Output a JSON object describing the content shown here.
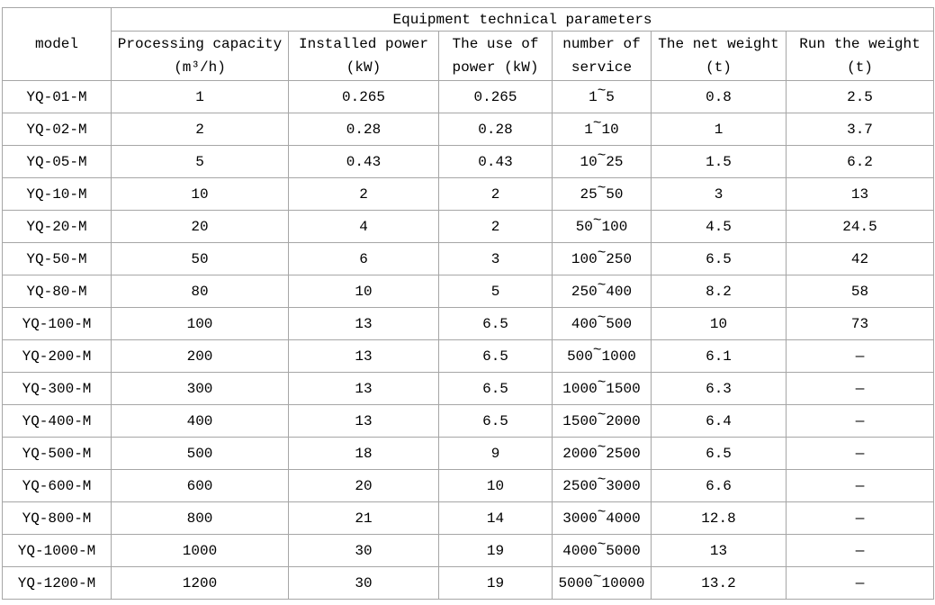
{
  "colors": {
    "border": "#a6a6a6",
    "text": "#000000",
    "background": "#ffffff"
  },
  "table": {
    "title": "Equipment technical parameters",
    "model_header": "model",
    "columns": [
      {
        "line1": "Processing capacity",
        "line2": "(m³/h)"
      },
      {
        "line1": "Installed power",
        "line2": "(kW)"
      },
      {
        "line1": "The use of",
        "line2": "power (kW)"
      },
      {
        "line1": "number of",
        "line2": "service"
      },
      {
        "line1": "The net weight",
        "line2": "(t)"
      },
      {
        "line1": "Run the weight",
        "line2": "(t)"
      }
    ],
    "rows": [
      [
        "YQ-01-M",
        "1",
        "0.265",
        "0.265",
        "1~5",
        "0.8",
        "2.5"
      ],
      [
        "YQ-02-M",
        "2",
        "0.28",
        "0.28",
        "1~10",
        "1",
        "3.7"
      ],
      [
        "YQ-05-M",
        "5",
        "0.43",
        "0.43",
        "10~25",
        "1.5",
        "6.2"
      ],
      [
        "YQ-10-M",
        "10",
        "2",
        "2",
        "25~50",
        "3",
        "13"
      ],
      [
        "YQ-20-M",
        "20",
        "4",
        "2",
        "50~100",
        "4.5",
        "24.5"
      ],
      [
        "YQ-50-M",
        "50",
        "6",
        "3",
        "100~250",
        "6.5",
        "42"
      ],
      [
        "YQ-80-M",
        "80",
        "10",
        "5",
        "250~400",
        "8.2",
        "58"
      ],
      [
        "YQ-100-M",
        "100",
        "13",
        "6.5",
        "400~500",
        "10",
        "73"
      ],
      [
        "YQ-200-M",
        "200",
        "13",
        "6.5",
        "500~1000",
        "6.1",
        "—"
      ],
      [
        "YQ-300-M",
        "300",
        "13",
        "6.5",
        "1000~1500",
        "6.3",
        "—"
      ],
      [
        "YQ-400-M",
        "400",
        "13",
        "6.5",
        "1500~2000",
        "6.4",
        "—"
      ],
      [
        "YQ-500-M",
        "500",
        "18",
        "9",
        "2000~2500",
        "6.5",
        "—"
      ],
      [
        "YQ-600-M",
        "600",
        "20",
        "10",
        "2500~3000",
        "6.6",
        "—"
      ],
      [
        "YQ-800-M",
        "800",
        "21",
        "14",
        "3000~4000",
        "12.8",
        "—"
      ],
      [
        "YQ-1000-M",
        "1000",
        "30",
        "19",
        "4000~5000",
        "13",
        "—"
      ],
      [
        "YQ-1200-M",
        "1200",
        "30",
        "19",
        "5000~10000",
        "13.2",
        "—"
      ]
    ]
  }
}
